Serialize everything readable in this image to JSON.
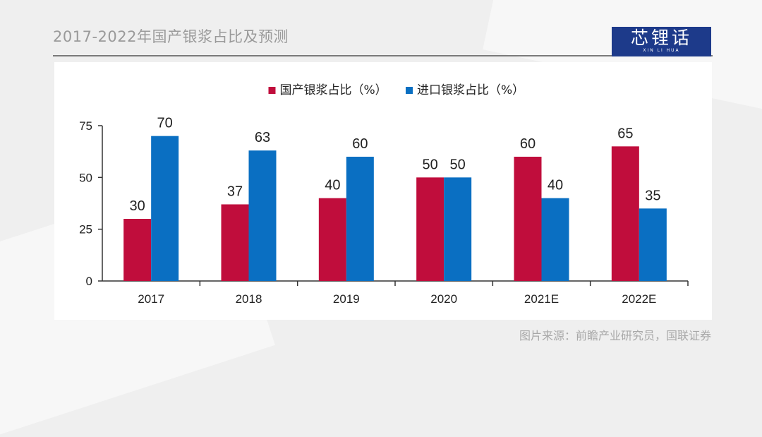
{
  "header": {
    "title": "2017-2022年国产银浆占比及预测",
    "logo_text": "芯锂话",
    "logo_subtext": "XIN LI HUA"
  },
  "colors": {
    "series_domestic": "#c00d3c",
    "series_import": "#0a6fc2",
    "logo_bg": "#1d3a8a"
  },
  "chart_data": {
    "type": "bar",
    "title": "",
    "xlabel": "",
    "ylabel": "",
    "categories": [
      "2017",
      "2018",
      "2019",
      "2020",
      "2021E",
      "2022E"
    ],
    "series": [
      {
        "name": "国产银浆占比（%）",
        "values": [
          30,
          37,
          40,
          50,
          60,
          65
        ]
      },
      {
        "name": "进口银浆占比（%）",
        "values": [
          70,
          63,
          60,
          50,
          40,
          35
        ]
      }
    ],
    "ylim": [
      0,
      75
    ],
    "yticks": [
      0,
      25,
      50,
      75
    ],
    "grid": false,
    "legend": "top-center"
  },
  "footer": {
    "source": "图片来源：前瞻产业研究员，国联证券"
  }
}
